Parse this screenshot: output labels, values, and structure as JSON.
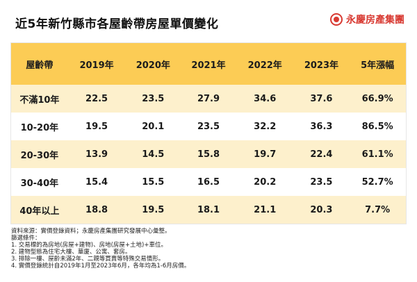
{
  "title": "近5年新竹縣市各屋齡帶房屋單價變化",
  "brand": {
    "name": "永慶房產集團",
    "icon": "brand-logo-icon",
    "color": "#d83a32"
  },
  "colors": {
    "header": "#fccc55",
    "alt_row": "#fdf0cc"
  },
  "table": {
    "headers": [
      "屋齡帶",
      "2019年",
      "2020年",
      "2021年",
      "2022年",
      "2023年",
      "5年漲幅"
    ],
    "rows": [
      [
        "不滿10年",
        "22.5",
        "23.5",
        "27.9",
        "34.6",
        "37.6",
        "66.9%"
      ],
      [
        "10-20年",
        "19.5",
        "20.1",
        "23.5",
        "32.2",
        "36.3",
        "86.5%"
      ],
      [
        "20-30年",
        "13.9",
        "14.5",
        "15.8",
        "19.7",
        "22.4",
        "61.1%"
      ],
      [
        "30-40年",
        "15.4",
        "15.5",
        "16.5",
        "20.2",
        "23.5",
        "52.7%"
      ],
      [
        "40年以上",
        "18.8",
        "19.5",
        "18.1",
        "21.1",
        "20.3",
        "7.7%"
      ]
    ]
  },
  "notes": [
    "資料來源：實價登錄資料；永慶房產集團研究發展中心彙整。",
    "篩選條件：",
    "1. 交易標的為房地(房屋+建物)、房地(房屋+土地)+車位。",
    "2. 建物型態為住宅大樓、華廈、公寓、套房。",
    "3. 排除一樓、屋齡未滿2年、二親等買賣等特殊交易情形。",
    "4. 實價登錄統計自2019年1月至2023年6月，各年均為1-6月房價。"
  ]
}
